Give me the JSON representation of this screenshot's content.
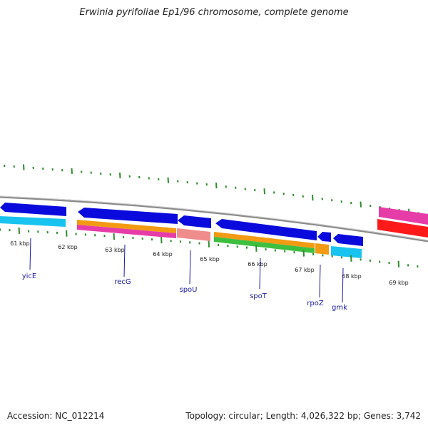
{
  "title": "Erwinia pyrifoliae Ep1/96 chromosome, complete genome",
  "footer": {
    "accession": "Accession: NC_012214",
    "summary": "Topology: circular; Length: 4,026,322 bp; Genes: 3,742"
  },
  "colors": {
    "backbone": "#8a8a8a",
    "tick": "#2e8b2e",
    "label": "#1a1aa6",
    "cds": "#0a0adc",
    "gene_cyan": "#19c3f0",
    "gene_orange": "#f29a12",
    "gene_magenta": "#e63ca8",
    "gene_salmon": "#ef8c8c",
    "gene_green": "#3fbf3f",
    "gene_red": "#ff1a1a"
  },
  "scale_labels": [
    "61 kbp",
    "62 kbp",
    "63 kbp",
    "64 kbp",
    "65 kbp",
    "66 kbp",
    "67 kbp",
    "68 kbp",
    "69 kbp"
  ],
  "gene_labels": [
    "yicE",
    "recG",
    "spoU",
    "spoT",
    "rpoZ",
    "gmk"
  ]
}
